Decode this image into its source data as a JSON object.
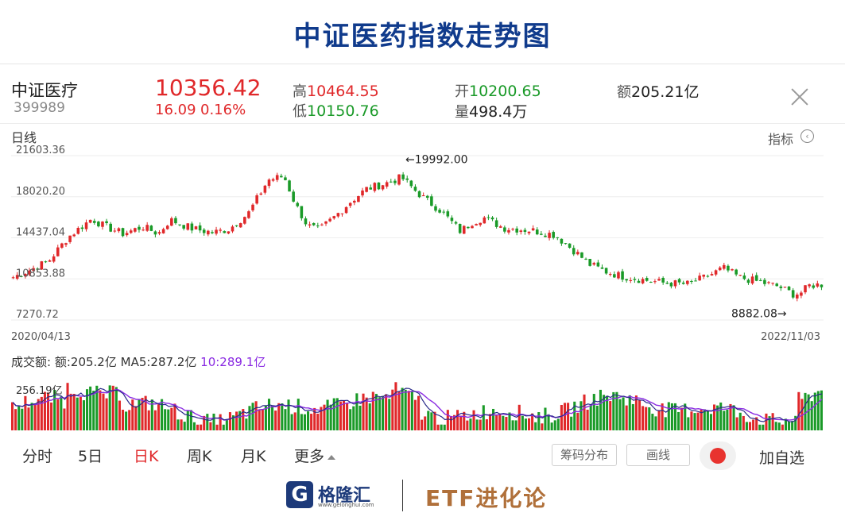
{
  "title": "中证医药指数走势图",
  "quote": {
    "name": "中证医疗",
    "code": "399989",
    "price": "10356.42",
    "change": "16.09",
    "change_pct": "0.16%",
    "high_label": "高",
    "high": "10464.55",
    "low_label": "低",
    "low": "10150.76",
    "open_label": "开",
    "open": "10200.65",
    "volume_label": "量",
    "volume": "498.4万",
    "amount_label": "额",
    "amount": "205.21亿"
  },
  "chart_header": {
    "period": "日线",
    "indicator": "指标",
    "indicator_icon": "chevron-left-circle-icon"
  },
  "chart_data": [
    {
      "type": "candlestick",
      "x_start": "2020/04/13",
      "x_end": "2022/11/03",
      "y_ticks": [
        "21603.36",
        "18020.20",
        "14437.04",
        "10853.88",
        "7270.72"
      ],
      "ylim": [
        7270.72,
        21603.36
      ],
      "annotations": [
        {
          "text": "←19992.00",
          "value": 19992.0,
          "kind": "max"
        },
        {
          "text": "8882.08→",
          "value": 8882.08,
          "kind": "min"
        }
      ],
      "series": [
        {
          "name": "close",
          "anchors": [
            [
              0,
              11000
            ],
            [
              20,
              11600
            ],
            [
              45,
              12400
            ],
            [
              70,
              14500
            ],
            [
              100,
              16100
            ],
            [
              115,
              15500
            ],
            [
              140,
              14800
            ],
            [
              165,
              15400
            ],
            [
              185,
              14800
            ],
            [
              200,
              16000
            ],
            [
              230,
              15200
            ],
            [
              255,
              14900
            ],
            [
              275,
              15200
            ],
            [
              300,
              16600
            ],
            [
              325,
              19500
            ],
            [
              345,
              19800
            ],
            [
              360,
              17300
            ],
            [
              375,
              15500
            ],
            [
              390,
              15100
            ],
            [
              410,
              16300
            ],
            [
              430,
              17600
            ],
            [
              450,
              18700
            ],
            [
              475,
              19200
            ],
            [
              495,
              19700
            ],
            [
              510,
              18700
            ],
            [
              525,
              17800
            ],
            [
              545,
              16800
            ],
            [
              570,
              15000
            ],
            [
              585,
              15800
            ],
            [
              600,
              16200
            ],
            [
              625,
              15300
            ],
            [
              660,
              15100
            ],
            [
              690,
              14700
            ],
            [
              715,
              13300
            ],
            [
              735,
              12100
            ],
            [
              755,
              11500
            ],
            [
              775,
              11100
            ],
            [
              800,
              10800
            ],
            [
              830,
              10500
            ],
            [
              860,
              10400
            ],
            [
              885,
              11100
            ],
            [
              905,
              11800
            ],
            [
              925,
              11000
            ],
            [
              950,
              10600
            ],
            [
              975,
              10200
            ],
            [
              995,
              9500
            ],
            [
              1005,
              9700
            ],
            [
              1015,
              10300
            ],
            [
              1030,
              10356
            ]
          ]
        }
      ],
      "colors": {
        "up": "#e0282a",
        "down": "#1a9a28"
      }
    },
    {
      "type": "bar",
      "title": "成交额:",
      "amount_text": "额:205.2亿",
      "ma5_text": "MA5:287.2亿",
      "ma10_text": "10:289.1亿",
      "y_tick": "256.19亿",
      "ylim": [
        0,
        600
      ],
      "ma5_color": "#2b2b8a",
      "ma10_color": "#8a2be2"
    }
  ],
  "tabs": [
    {
      "label": "分时"
    },
    {
      "label": "5日"
    },
    {
      "label": "日K",
      "active": true
    },
    {
      "label": "周K"
    },
    {
      "label": "月K"
    },
    {
      "label": "更多"
    }
  ],
  "tools": {
    "chip": "筹码分布",
    "draw": "画线",
    "add": "加自选"
  },
  "footer": {
    "logo_mark": "G",
    "logo_name": "格隆汇",
    "logo_url": "www.gelonghui.com",
    "brand": "ETF进化论"
  }
}
